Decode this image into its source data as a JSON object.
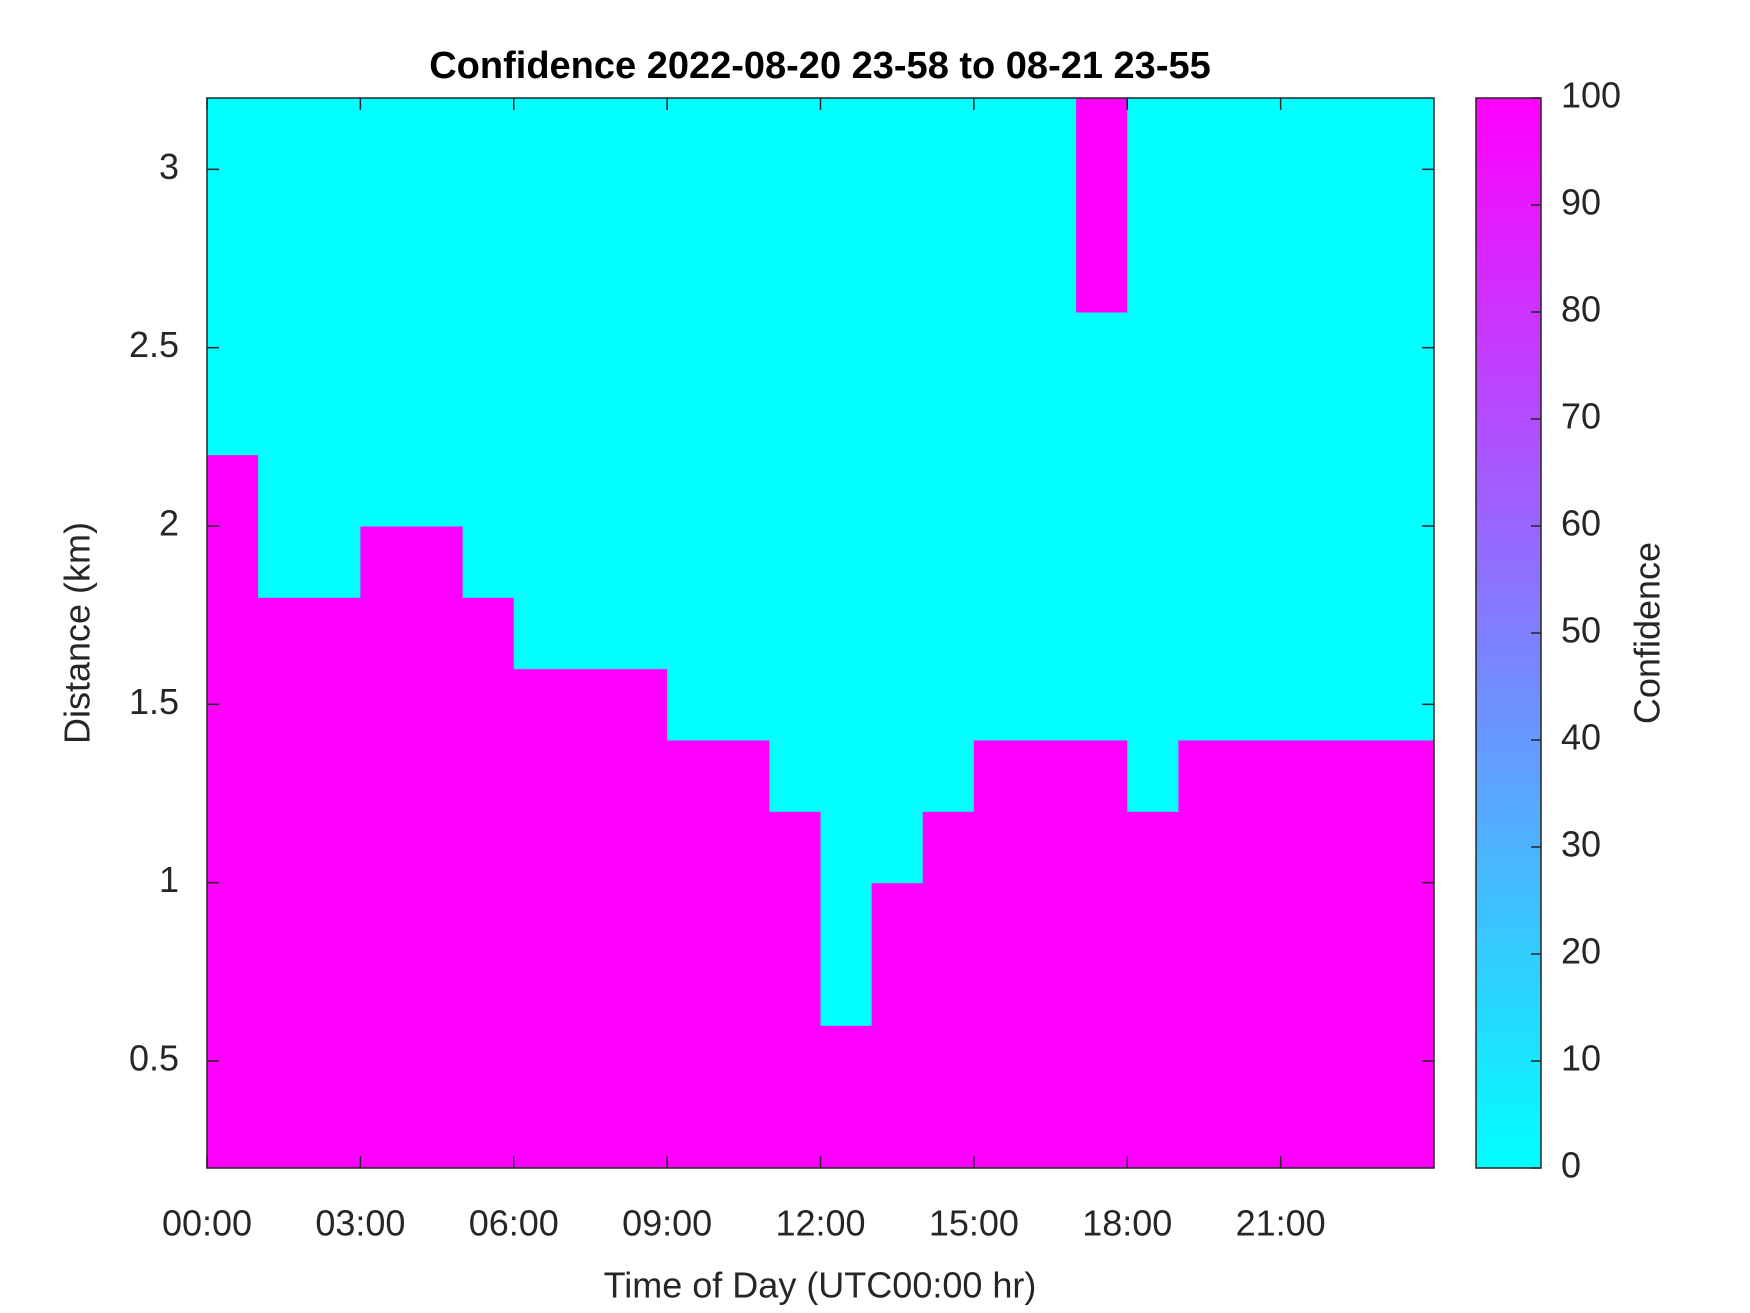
{
  "chart_data": {
    "type": "heatmap",
    "title": "Confidence 2022-08-20 23-58 to 08-21 23-55",
    "x_label": "Time of Day (UTC00:00 hr)",
    "y_label": "Distance (km)",
    "colorbar_label": "Confidence",
    "colormap": [
      "#00ffff",
      "#ff00ff"
    ],
    "x": [
      0.5,
      1.5,
      2.5,
      3.5,
      4.5,
      5.5,
      6.5,
      7.5,
      8.5,
      9.5,
      10.5,
      11.5,
      12.5,
      13.5,
      14.5,
      15.5,
      16.5,
      17.5,
      18.5,
      19.5,
      20.5,
      21.5,
      22.5,
      23.5
    ],
    "y": [
      0.3,
      0.5,
      0.7,
      0.9,
      1.1,
      1.3,
      1.5,
      1.7,
      1.9,
      2.1,
      2.3,
      2.5,
      2.7,
      2.9,
      3.1
    ],
    "values": [
      [
        100,
        100,
        100,
        100,
        100,
        100,
        100,
        100,
        100,
        100,
        100,
        100,
        100,
        100,
        100,
        100,
        100,
        100,
        100,
        100,
        100,
        100,
        100,
        100
      ],
      [
        100,
        100,
        100,
        100,
        100,
        100,
        100,
        100,
        100,
        100,
        100,
        100,
        100,
        100,
        100,
        100,
        100,
        100,
        100,
        100,
        100,
        100,
        100,
        100
      ],
      [
        100,
        100,
        100,
        100,
        100,
        100,
        100,
        100,
        100,
        100,
        100,
        100,
        0,
        100,
        100,
        100,
        100,
        100,
        100,
        100,
        100,
        100,
        100,
        100
      ],
      [
        100,
        100,
        100,
        100,
        100,
        100,
        100,
        100,
        100,
        100,
        100,
        100,
        0,
        100,
        100,
        100,
        100,
        100,
        100,
        100,
        100,
        100,
        100,
        100
      ],
      [
        100,
        100,
        100,
        100,
        100,
        100,
        100,
        100,
        100,
        100,
        100,
        100,
        0,
        0,
        100,
        100,
        100,
        100,
        100,
        100,
        100,
        100,
        100,
        100
      ],
      [
        100,
        100,
        100,
        100,
        100,
        100,
        100,
        100,
        100,
        100,
        100,
        0,
        0,
        0,
        0,
        100,
        100,
        100,
        0,
        100,
        100,
        100,
        100,
        100
      ],
      [
        100,
        100,
        100,
        100,
        100,
        100,
        100,
        100,
        100,
        0,
        0,
        0,
        0,
        0,
        0,
        0,
        0,
        0,
        0,
        0,
        0,
        0,
        0,
        0
      ],
      [
        100,
        100,
        100,
        100,
        100,
        100,
        0,
        0,
        0,
        0,
        0,
        0,
        0,
        0,
        0,
        0,
        0,
        0,
        0,
        0,
        0,
        0,
        0,
        0
      ],
      [
        100,
        0,
        0,
        100,
        100,
        0,
        0,
        0,
        0,
        0,
        0,
        0,
        0,
        0,
        0,
        0,
        0,
        0,
        0,
        0,
        0,
        0,
        0,
        0
      ],
      [
        100,
        0,
        0,
        0,
        0,
        0,
        0,
        0,
        0,
        0,
        0,
        0,
        0,
        0,
        0,
        0,
        0,
        0,
        0,
        0,
        0,
        0,
        0,
        0
      ],
      [
        0,
        0,
        0,
        0,
        0,
        0,
        0,
        0,
        0,
        0,
        0,
        0,
        0,
        0,
        0,
        0,
        0,
        0,
        0,
        0,
        0,
        0,
        0,
        0
      ],
      [
        0,
        0,
        0,
        0,
        0,
        0,
        0,
        0,
        0,
        0,
        0,
        0,
        0,
        0,
        0,
        0,
        0,
        0,
        0,
        0,
        0,
        0,
        0,
        0
      ],
      [
        0,
        0,
        0,
        0,
        0,
        0,
        0,
        0,
        0,
        0,
        0,
        0,
        0,
        0,
        0,
        0,
        0,
        100,
        0,
        0,
        0,
        0,
        0,
        0
      ],
      [
        0,
        0,
        0,
        0,
        0,
        0,
        0,
        0,
        0,
        0,
        0,
        0,
        0,
        0,
        0,
        0,
        0,
        100,
        0,
        0,
        0,
        0,
        0,
        0
      ],
      [
        0,
        0,
        0,
        0,
        0,
        0,
        0,
        0,
        0,
        0,
        0,
        0,
        0,
        0,
        0,
        0,
        0,
        100,
        0,
        0,
        0,
        0,
        0,
        0
      ]
    ],
    "xlim": [
      0,
      24
    ],
    "xticks": [
      {
        "value": 0,
        "label": "00:00"
      },
      {
        "value": 3,
        "label": "03:00"
      },
      {
        "value": 6,
        "label": "06:00"
      },
      {
        "value": 9,
        "label": "09:00"
      },
      {
        "value": 12,
        "label": "12:00"
      },
      {
        "value": 15,
        "label": "15:00"
      },
      {
        "value": 18,
        "label": "18:00"
      },
      {
        "value": 21,
        "label": "21:00"
      }
    ],
    "ylim": [
      0.2,
      3.2
    ],
    "yticks": [
      0.5,
      1,
      1.5,
      2,
      2.5,
      3
    ],
    "clim": [
      0,
      100
    ],
    "cticks": [
      0,
      10,
      20,
      30,
      40,
      50,
      60,
      70,
      80,
      90,
      100
    ]
  }
}
